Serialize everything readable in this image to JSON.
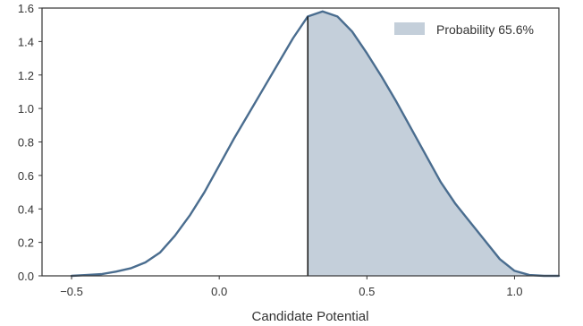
{
  "chart_data": {
    "type": "area",
    "title": "",
    "xlabel": "Candidate Potential",
    "ylabel": "",
    "xlim": [
      -0.6,
      1.15
    ],
    "ylim": [
      0.0,
      1.6
    ],
    "xticks": [
      "-0.5",
      "0.0",
      "0.5",
      "1.0"
    ],
    "yticks": [
      "0.0",
      "0.2",
      "0.4",
      "0.6",
      "0.8",
      "1.0",
      "1.2",
      "1.4",
      "1.6"
    ],
    "grid": false,
    "legend": {
      "placement": "top-right",
      "entries": [
        "Probability 65.6%"
      ]
    },
    "threshold_x": 0.3,
    "series": [
      {
        "name": "",
        "x": [
          -0.5,
          -0.45,
          -0.4,
          -0.35,
          -0.3,
          -0.25,
          -0.2,
          -0.15,
          -0.1,
          -0.05,
          0.0,
          0.05,
          0.1,
          0.15,
          0.2,
          0.25,
          0.3,
          0.35,
          0.4,
          0.45,
          0.5,
          0.55,
          0.6,
          0.65,
          0.7,
          0.75,
          0.8,
          0.85,
          0.9,
          0.95,
          1.0,
          1.05,
          1.1,
          1.15
        ],
        "y": [
          0.0,
          0.005,
          0.01,
          0.025,
          0.045,
          0.08,
          0.14,
          0.24,
          0.36,
          0.5,
          0.66,
          0.82,
          0.97,
          1.12,
          1.27,
          1.42,
          1.55,
          1.58,
          1.55,
          1.46,
          1.33,
          1.19,
          1.04,
          0.88,
          0.72,
          0.56,
          0.43,
          0.32,
          0.21,
          0.1,
          0.03,
          0.005,
          0.0,
          0.0
        ]
      }
    ],
    "colors": {
      "line": "#4a6d8f",
      "fill": "#c4cfda",
      "threshold": "#111111",
      "frame": "#333333",
      "legend_patch": "#c4cfda"
    }
  }
}
